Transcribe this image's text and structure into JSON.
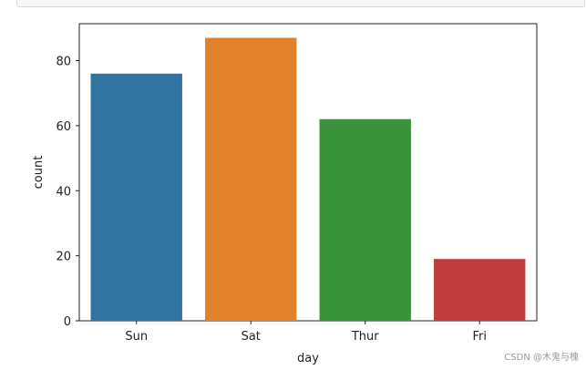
{
  "chart_data": {
    "type": "bar",
    "categories": [
      "Sun",
      "Sat",
      "Thur",
      "Fri"
    ],
    "values": [
      76,
      87,
      62,
      19
    ],
    "colors": [
      "#3274a1",
      "#e1812c",
      "#3a923a",
      "#c03d3e"
    ],
    "xlabel": "day",
    "ylabel": "count",
    "ylim": [
      0,
      91.35
    ],
    "yticks": [
      0,
      20,
      40,
      60,
      80
    ],
    "grid": false,
    "legend": "none"
  },
  "watermark": "CSDN @木鬼与槐"
}
